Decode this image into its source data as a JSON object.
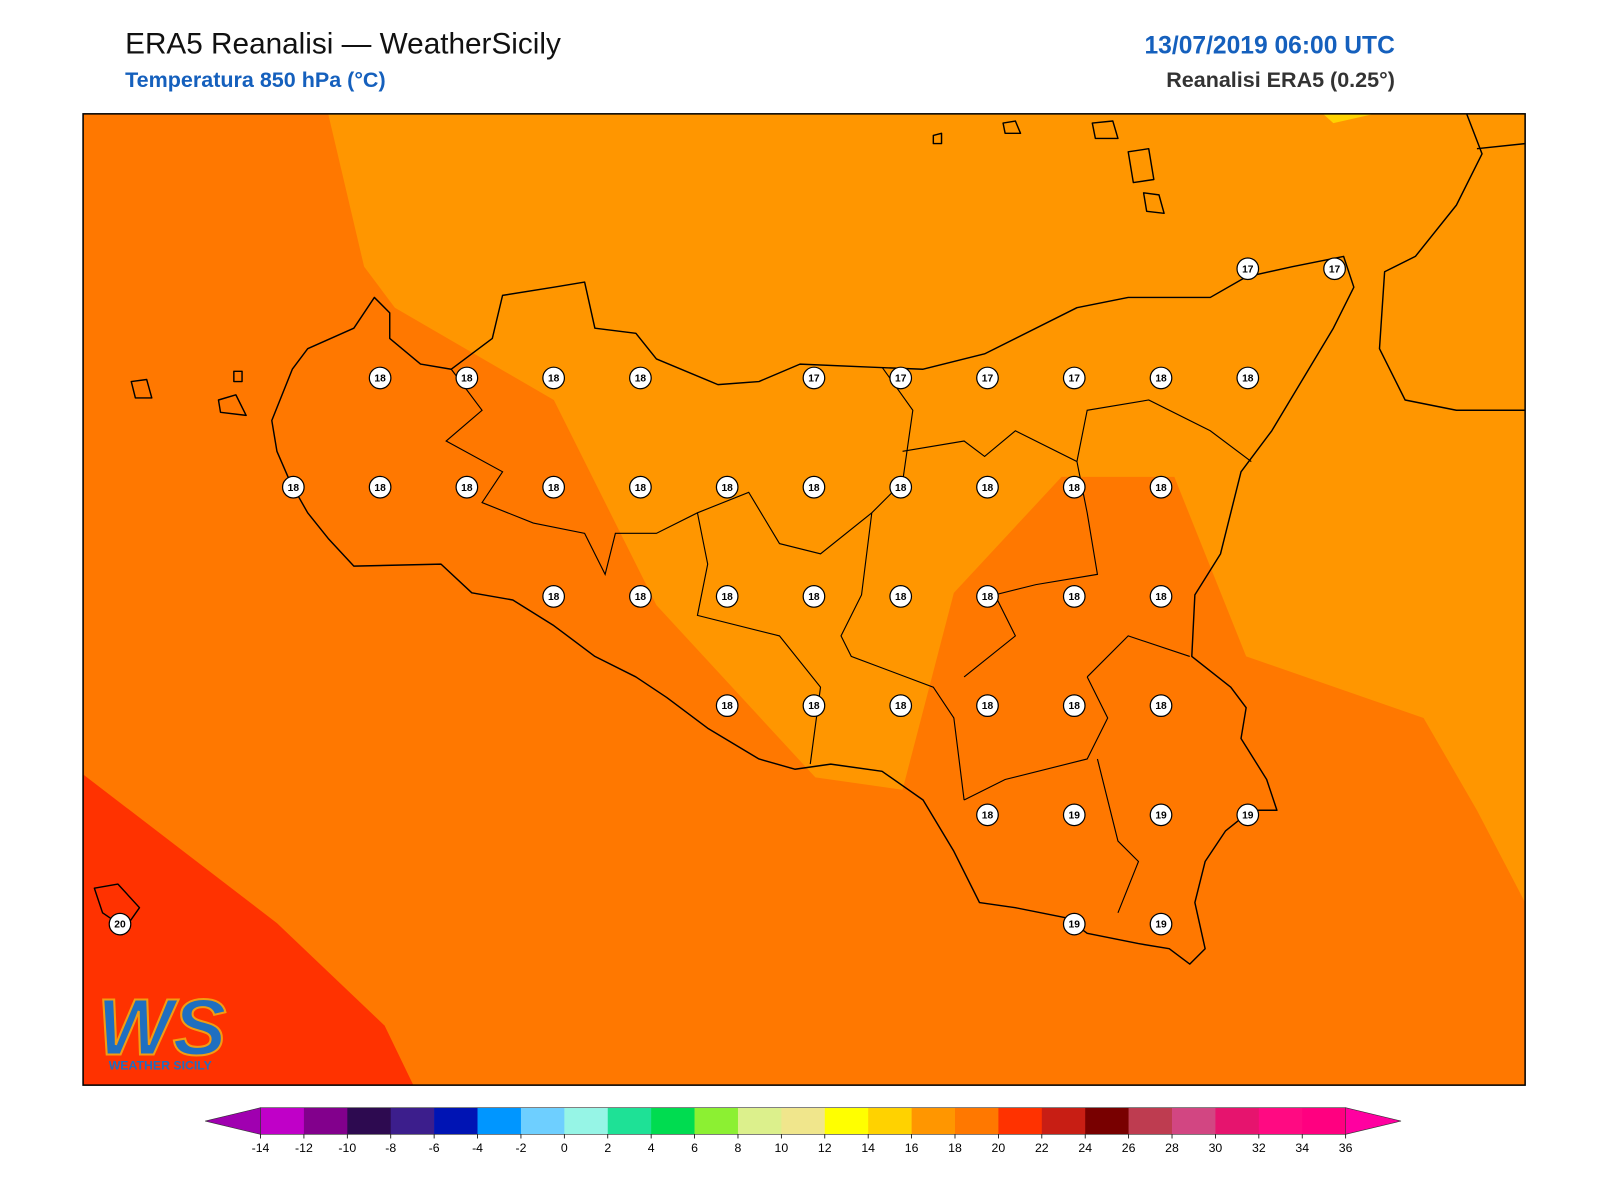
{
  "header": {
    "title": "ERA5 Reanalisi — WeatherSicily",
    "subtitle": "Temperatura 850 hPa (°C)",
    "date": "13/07/2019 06:00 UTC",
    "source": "Reanalisi ERA5 (0.25°)"
  },
  "stations": [
    17,
    17,
    18,
    18,
    18,
    18,
    17,
    17,
    17,
    17,
    18,
    18,
    18,
    18,
    18,
    18,
    18,
    18,
    18,
    18,
    18,
    18,
    18,
    18,
    18,
    18,
    18,
    18,
    18,
    18,
    18,
    18,
    18,
    18,
    18,
    18,
    18,
    18,
    19,
    19,
    19,
    19,
    19,
    20
  ],
  "logo": {
    "mark": "WS",
    "text": "WEATHER SICILY"
  },
  "colorbar": {
    "ticks": [
      -14,
      -12,
      -10,
      -8,
      -6,
      -4,
      -2,
      0,
      2,
      4,
      6,
      8,
      10,
      12,
      14,
      16,
      18,
      20,
      22,
      24,
      26,
      28,
      30,
      32,
      34,
      36
    ],
    "colors": [
      "#c000c8",
      "#82008c",
      "#2d0a50",
      "#3c1e8c",
      "#0014b4",
      "#0096ff",
      "#6ecfff",
      "#96f5e6",
      "#1ee196",
      "#00dc50",
      "#8cf032",
      "#dcf08c",
      "#f0e68c",
      "#ffff00",
      "#ffd200",
      "#ff9600",
      "#ff7800",
      "#ff3200",
      "#c81e14",
      "#780000",
      "#be3c50",
      "#d24682",
      "#e6146e",
      "#ff0a82",
      "#ff0080"
    ],
    "under": "#a000b0",
    "over": "#ff00a0"
  }
}
